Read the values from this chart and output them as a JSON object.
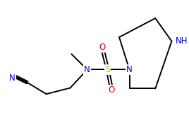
{
  "bg_color": "#ffffff",
  "bond_color": "#000000",
  "atom_colors": {
    "N": "#0000cc",
    "S": "#ccaa00",
    "O": "#cc0000"
  },
  "figsize": [
    2.68,
    1.67
  ],
  "dpi": 100,
  "lw": 1.4,
  "fontsize": 8.5
}
